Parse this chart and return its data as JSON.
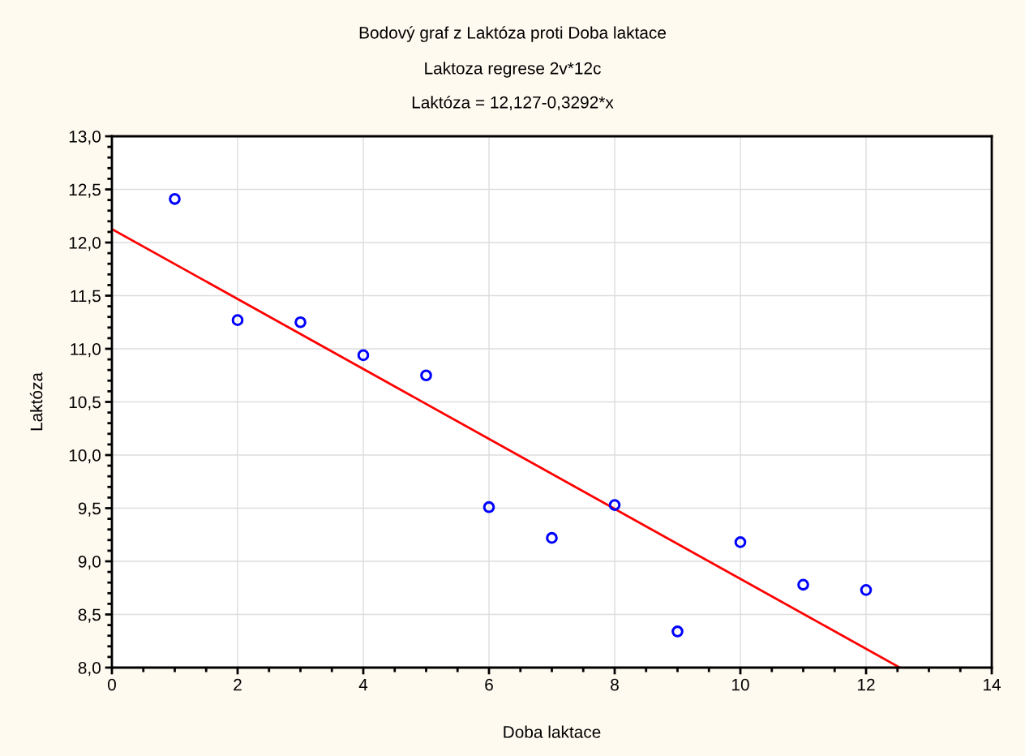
{
  "chart_data": {
    "type": "scatter",
    "title": "Bodový graf z Laktóza proti Doba laktace",
    "subtitle": "Laktoza regrese 2v*12c",
    "annotations": [
      "Laktóza = 12,127-0,3292*x"
    ],
    "xlabel": "Doba laktace",
    "ylabel": "Laktóza",
    "x": [
      1,
      2,
      3,
      4,
      5,
      6,
      7,
      8,
      9,
      10,
      11,
      12
    ],
    "series": [
      {
        "color": "#0000ff",
        "marker": "circle",
        "values": [
          12.41,
          11.27,
          11.25,
          10.94,
          10.75,
          9.51,
          9.22,
          9.53,
          8.34,
          9.18,
          8.78,
          8.73
        ]
      },
      {
        "type": "line",
        "color": "#ff0000",
        "marker": "none",
        "line_style": "solid",
        "x": [
          0,
          12.537
        ],
        "values": [
          12.127,
          8.0
        ]
      }
    ],
    "xlim": [
      0,
      14
    ],
    "ylim": [
      8,
      13
    ],
    "xticks": [
      0,
      2,
      4,
      6,
      8,
      10,
      12,
      14
    ],
    "yticks": [
      {
        "value": 8,
        "label": "8,0"
      },
      {
        "value": 8.5,
        "label": "8,5"
      },
      {
        "value": 9,
        "label": "9,0"
      },
      {
        "value": 9.5,
        "label": "9,5"
      },
      {
        "value": 10,
        "label": "10,0"
      },
      {
        "value": 10.5,
        "label": "10,5"
      },
      {
        "value": 11,
        "label": "11,0"
      },
      {
        "value": 11.5,
        "label": "11,5"
      },
      {
        "value": 12,
        "label": "12,0"
      },
      {
        "value": 12.5,
        "label": "12,5"
      },
      {
        "value": 13,
        "label": "13,0"
      }
    ],
    "grid": true
  }
}
